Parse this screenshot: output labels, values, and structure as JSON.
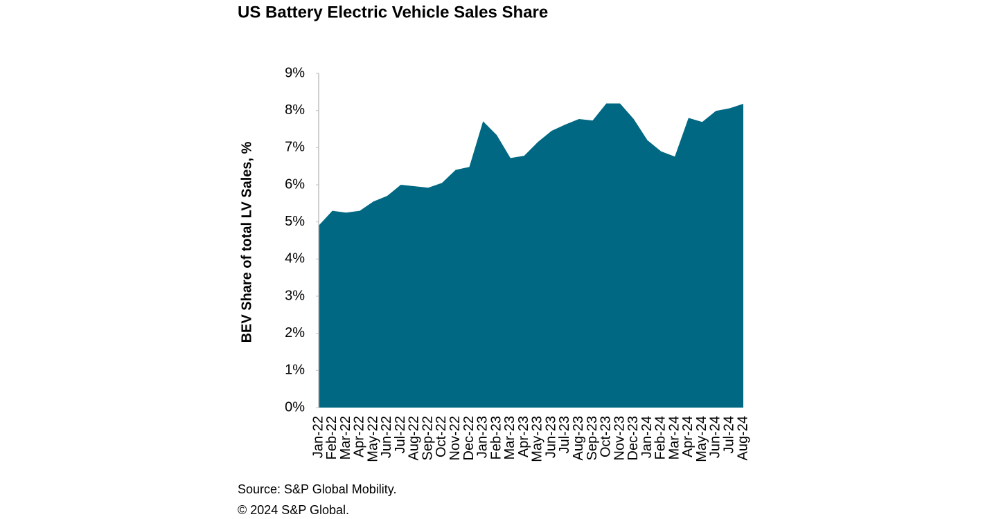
{
  "chart_data": {
    "type": "area",
    "title": "US Battery Electric Vehicle Sales Share",
    "y_label": "BEV Share of total LV Sales, %",
    "source": "Source: S&P Global Mobility.",
    "copyright": "© 2024 S&P Global.",
    "categories": [
      "Jan-22",
      "Feb-22",
      "Mar-22",
      "Apr-22",
      "May-22",
      "Jun-22",
      "Jul-22",
      "Aug-22",
      "Sep-22",
      "Oct-22",
      "Nov-22",
      "Dec-22",
      "Jan-23",
      "Feb-23",
      "Mar-23",
      "Apr-23",
      "May-23",
      "Jun-23",
      "Jul-23",
      "Aug-23",
      "Sep-23",
      "Oct-23",
      "Nov-23",
      "Dec-23",
      "Jan-24",
      "Feb-24",
      "Mar-24",
      "Apr-24",
      "May-24",
      "Jun-24",
      "Jul-24",
      "Aug-24"
    ],
    "values": [
      4.9,
      5.3,
      5.25,
      5.3,
      5.55,
      5.7,
      6.0,
      5.96,
      5.92,
      6.05,
      6.4,
      6.48,
      7.71,
      7.34,
      6.72,
      6.78,
      7.15,
      7.45,
      7.62,
      7.77,
      7.73,
      8.19,
      8.19,
      7.77,
      7.2,
      6.9,
      6.76,
      7.8,
      7.69,
      7.99,
      8.06,
      8.18
    ],
    "color": "#006882",
    "ylim": [
      0,
      9
    ],
    "yticks": [
      {
        "value": 0,
        "label": "0%"
      },
      {
        "value": 1,
        "label": "1%"
      },
      {
        "value": 2,
        "label": "2%"
      },
      {
        "value": 3,
        "label": "3%"
      },
      {
        "value": 4,
        "label": "4%"
      },
      {
        "value": 5,
        "label": "5%"
      },
      {
        "value": 6,
        "label": "6%"
      },
      {
        "value": 7,
        "label": "7%"
      },
      {
        "value": 8,
        "label": "8%"
      },
      {
        "value": 9,
        "label": "9%"
      }
    ],
    "grid": false
  }
}
